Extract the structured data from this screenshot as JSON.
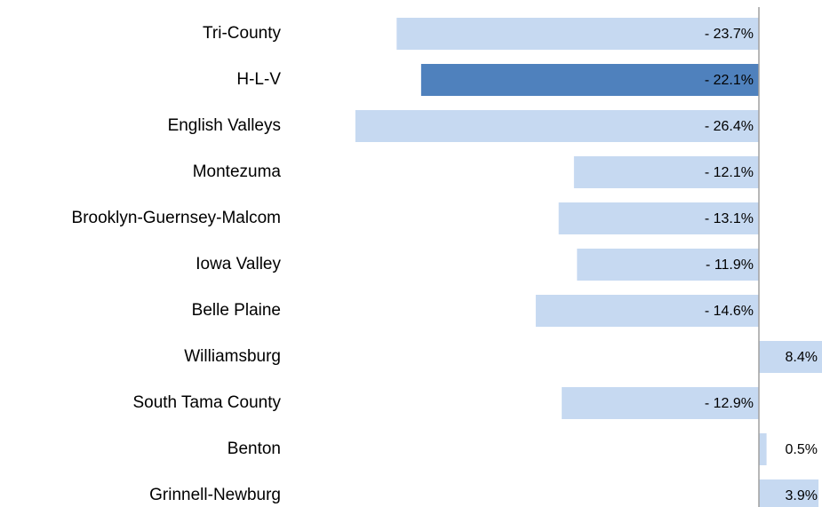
{
  "chart_data": {
    "type": "hbar",
    "categories": [
      "Tri-County",
      "H-L-V",
      "English Valleys",
      "Montezuma",
      "Brooklyn-Guernsey-Malcom",
      "Iowa Valley",
      "Belle Plaine",
      "Williamsburg",
      "South Tama County",
      "Benton",
      "Grinnell-Newburg"
    ],
    "values": [
      -23.7,
      -22.1,
      -26.4,
      -12.1,
      -13.1,
      -11.9,
      -14.6,
      8.4,
      -12.9,
      0.5,
      3.9
    ],
    "value_labels": [
      "- 23.7%",
      "- 22.1%",
      "- 26.4%",
      "- 12.1%",
      "- 13.1%",
      "- 11.9%",
      "- 14.6%",
      "8.4%",
      "- 12.9%",
      "0.5%",
      "3.9%"
    ],
    "colors": [
      "#c6d9f1",
      "#4f81bd",
      "#c6d9f1",
      "#c6d9f1",
      "#c6d9f1",
      "#c6d9f1",
      "#c6d9f1",
      "#c6d9f1",
      "#c6d9f1",
      "#c6d9f1",
      "#c6d9f1"
    ],
    "xlim": [
      -27,
      4
    ]
  }
}
